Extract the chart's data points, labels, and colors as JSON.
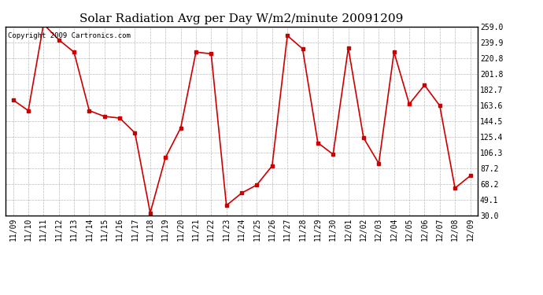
{
  "title": "Solar Radiation Avg per Day W/m2/minute 20091209",
  "copyright": "Copyright 2009 Cartronics.com",
  "x_labels": [
    "11/09",
    "11/10",
    "11/11",
    "11/12",
    "11/13",
    "11/14",
    "11/15",
    "11/16",
    "11/17",
    "11/18",
    "11/19",
    "11/20",
    "11/21",
    "11/22",
    "11/23",
    "11/24",
    "11/25",
    "11/26",
    "11/27",
    "11/28",
    "11/29",
    "11/30",
    "12/01",
    "12/02",
    "12/03",
    "12/04",
    "12/05",
    "12/06",
    "12/07",
    "12/08",
    "12/09"
  ],
  "y_values": [
    170.0,
    157.0,
    262.0,
    243.0,
    228.0,
    157.0,
    150.0,
    148.0,
    130.0,
    33.0,
    100.0,
    136.0,
    228.0,
    226.0,
    42.0,
    57.0,
    67.0,
    90.0,
    248.0,
    232.0,
    118.0,
    104.0,
    233.0,
    124.0,
    93.0,
    228.0,
    165.0,
    188.0,
    163.0,
    63.0,
    78.0
  ],
  "y_ticks": [
    30.0,
    49.1,
    68.2,
    87.2,
    106.3,
    125.4,
    144.5,
    163.6,
    182.7,
    201.8,
    220.8,
    239.9,
    259.0
  ],
  "y_min": 30.0,
  "y_max": 259.0,
  "line_color": "#cc0000",
  "marker": "s",
  "marker_size": 2.5,
  "bg_color": "#ffffff",
  "grid_color": "#bbbbbb",
  "title_fontsize": 11,
  "tick_fontsize": 7,
  "copyright_fontsize": 6.5
}
